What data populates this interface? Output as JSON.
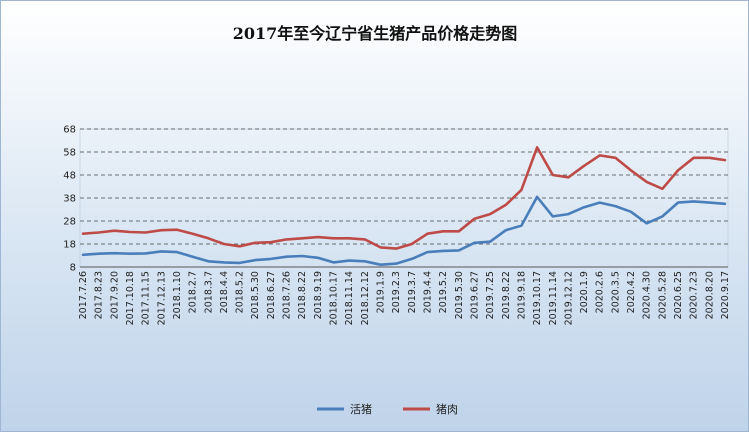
{
  "chart_data": {
    "type": "line",
    "title": "2017年至今辽宁省生猪产品价格走势图",
    "xlabel": "",
    "ylabel": "",
    "ylim": [
      8,
      68
    ],
    "yticks": [
      8,
      18,
      28,
      38,
      48,
      58,
      68
    ],
    "grid": true,
    "legend_position": "bottom",
    "categories": [
      "2017.7.26",
      "2017.8.23",
      "2017.9.20",
      "2017.10.18",
      "2017.11.15",
      "2017.12.13",
      "2018.1.10",
      "2018.2.7",
      "2018.3.7",
      "2018.4.4",
      "2018.5.2",
      "2018.5.30",
      "2018.6.27",
      "2018.7.26",
      "2018.8.22",
      "2018.9.19",
      "2018.10.17",
      "2018.11.14",
      "2018.12.12",
      "2019.1.9",
      "2019.2.3",
      "2019.3.7",
      "2019.4.4",
      "2019.5.2",
      "2019.5.30",
      "2019.6.27",
      "2019.7.25",
      "2019.8.22",
      "2019.9.18",
      "2019.10.17",
      "2019.11.14",
      "2019.12.12",
      "2020.1.9",
      "2020.2.6",
      "2020.3.5",
      "2020.4.2",
      "2020.4.30",
      "2020.5.28",
      "2020.6.25",
      "2020.7.23",
      "2020.8.20",
      "2020.9.17"
    ],
    "series": [
      {
        "name": "活猪",
        "color": "#4a7ebb",
        "values": [
          13.3,
          13.8,
          14.0,
          13.8,
          13.9,
          14.8,
          14.5,
          12.5,
          10.5,
          10.0,
          9.8,
          11.0,
          11.5,
          12.5,
          12.8,
          12.0,
          10.0,
          10.8,
          10.5,
          9.0,
          9.5,
          11.5,
          14.5,
          15.0,
          15.2,
          18.5,
          19.0,
          24.0,
          26.0,
          38.5,
          30.0,
          31.0,
          34.0,
          36.0,
          34.5,
          32.0,
          27.0,
          30.0,
          36.0,
          36.5,
          36.0,
          35.5
        ]
      },
      {
        "name": "猪肉",
        "color": "#be4b48",
        "values": [
          22.5,
          23.0,
          23.8,
          23.2,
          23.0,
          24.0,
          24.2,
          22.5,
          20.5,
          18.0,
          17.0,
          18.5,
          18.8,
          20.0,
          20.5,
          21.0,
          20.5,
          20.5,
          20.0,
          16.5,
          16.0,
          18.0,
          22.5,
          23.5,
          23.5,
          29.0,
          31.0,
          35.0,
          41.5,
          60.0,
          48.0,
          47.0,
          52.0,
          56.5,
          55.5,
          50.0,
          45.0,
          42.0,
          50.0,
          55.5,
          55.5,
          54.5
        ]
      }
    ]
  }
}
